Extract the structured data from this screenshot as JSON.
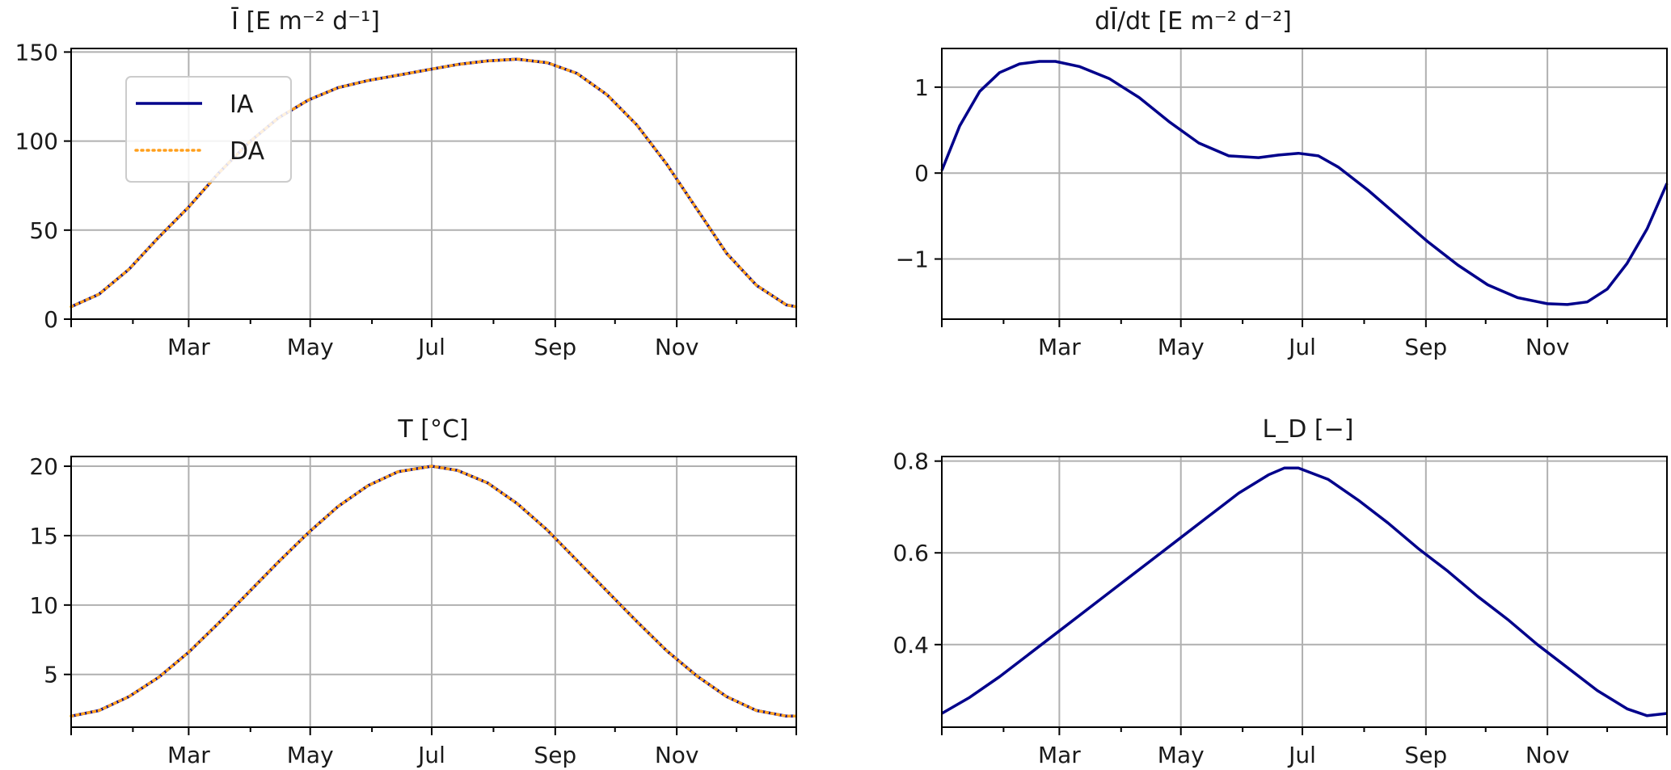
{
  "chart_data": [
    {
      "type": "line",
      "title": "Ī [E m⁻² d⁻¹]",
      "x_ticks": [
        "Mar",
        "May",
        "Jul",
        "Sep",
        "Nov"
      ],
      "xlim": [
        1,
        365
      ],
      "ylim": [
        0,
        152
      ],
      "y_ticks": [
        "0",
        "50",
        "100",
        "150"
      ],
      "grid": true,
      "legend": {
        "placement": "upper-left",
        "entries": [
          "IA",
          "DA"
        ]
      },
      "x": [
        1,
        15,
        30,
        45,
        60,
        75,
        90,
        105,
        120,
        135,
        150,
        165,
        180,
        195,
        210,
        225,
        240,
        255,
        270,
        285,
        300,
        315,
        330,
        345,
        360,
        365
      ],
      "series": [
        {
          "name": "IA",
          "color": "#00008b",
          "style": "solid",
          "values": [
            7,
            14,
            28,
            46,
            63,
            82,
            99,
            113,
            123,
            130,
            134,
            137,
            140,
            143,
            145,
            146,
            144,
            138,
            126,
            109,
            87,
            62,
            37,
            19,
            8,
            7
          ]
        },
        {
          "name": "DA",
          "color": "#ff9f1c",
          "style": "dotted",
          "values": [
            7,
            14,
            28,
            46,
            63,
            82,
            99,
            113,
            123,
            130,
            134,
            137,
            140,
            143,
            145,
            146,
            144,
            138,
            126,
            109,
            87,
            62,
            37,
            19,
            8,
            7
          ]
        }
      ]
    },
    {
      "type": "line",
      "title": "dĪ/dt [E m⁻² d⁻²]",
      "x_ticks": [
        "Mar",
        "May",
        "Jul",
        "Sep",
        "Nov"
      ],
      "xlim": [
        1,
        365
      ],
      "ylim": [
        -1.7,
        1.45
      ],
      "y_ticks": [
        "1",
        "0",
        "−1"
      ],
      "grid": true,
      "x": [
        1,
        10,
        20,
        30,
        40,
        50,
        58,
        70,
        85,
        100,
        115,
        130,
        145,
        160,
        170,
        180,
        190,
        200,
        215,
        230,
        245,
        260,
        275,
        290,
        305,
        315,
        325,
        335,
        345,
        355,
        365
      ],
      "series": [
        {
          "name": "",
          "color": "#00008b",
          "style": "solid",
          "values": [
            0.03,
            0.55,
            0.95,
            1.17,
            1.27,
            1.3,
            1.3,
            1.24,
            1.1,
            0.88,
            0.6,
            0.35,
            0.2,
            0.18,
            0.21,
            0.23,
            0.2,
            0.07,
            -0.2,
            -0.5,
            -0.8,
            -1.07,
            -1.3,
            -1.45,
            -1.52,
            -1.53,
            -1.5,
            -1.35,
            -1.05,
            -0.65,
            -0.12
          ]
        }
      ]
    },
    {
      "type": "line",
      "title": "T [°C]",
      "x_ticks": [
        "Mar",
        "May",
        "Jul",
        "Sep",
        "Nov"
      ],
      "xlim": [
        1,
        365
      ],
      "ylim": [
        1.2,
        20.7
      ],
      "y_ticks": [
        "20",
        "15",
        "10",
        "5"
      ],
      "grid": true,
      "x": [
        1,
        15,
        30,
        45,
        60,
        75,
        90,
        105,
        120,
        135,
        150,
        165,
        182,
        195,
        210,
        225,
        240,
        255,
        270,
        285,
        300,
        315,
        330,
        345,
        360,
        365
      ],
      "series": [
        {
          "name": "IA",
          "color": "#00008b",
          "style": "solid",
          "values": [
            2.0,
            2.4,
            3.4,
            4.8,
            6.6,
            8.7,
            10.9,
            13.1,
            15.2,
            17.1,
            18.6,
            19.6,
            20.0,
            19.7,
            18.8,
            17.3,
            15.4,
            13.2,
            11.0,
            8.8,
            6.7,
            4.9,
            3.4,
            2.4,
            2.0,
            2.0
          ]
        },
        {
          "name": "DA",
          "color": "#ff9f1c",
          "style": "dotted",
          "values": [
            2.0,
            2.4,
            3.4,
            4.8,
            6.6,
            8.7,
            10.9,
            13.1,
            15.2,
            17.1,
            18.6,
            19.6,
            20.0,
            19.7,
            18.8,
            17.3,
            15.4,
            13.2,
            11.0,
            8.8,
            6.7,
            4.9,
            3.4,
            2.4,
            2.0,
            2.0
          ]
        }
      ]
    },
    {
      "type": "line",
      "title": "L_D [−]",
      "x_ticks": [
        "Mar",
        "May",
        "Jul",
        "Sep",
        "Nov"
      ],
      "xlim": [
        1,
        365
      ],
      "ylim": [
        0.22,
        0.81
      ],
      "y_ticks": [
        "0.8",
        "0.6",
        "0.4"
      ],
      "grid": true,
      "x": [
        1,
        15,
        30,
        45,
        60,
        75,
        90,
        105,
        120,
        135,
        150,
        165,
        173,
        180,
        195,
        210,
        225,
        240,
        255,
        270,
        285,
        300,
        315,
        330,
        345,
        355,
        365
      ],
      "series": [
        {
          "name": "",
          "color": "#00008b",
          "style": "solid",
          "values": [
            0.25,
            0.285,
            0.33,
            0.38,
            0.43,
            0.48,
            0.53,
            0.58,
            0.63,
            0.68,
            0.73,
            0.77,
            0.785,
            0.785,
            0.76,
            0.715,
            0.665,
            0.61,
            0.56,
            0.505,
            0.455,
            0.4,
            0.35,
            0.3,
            0.26,
            0.245,
            0.25
          ]
        }
      ]
    }
  ]
}
